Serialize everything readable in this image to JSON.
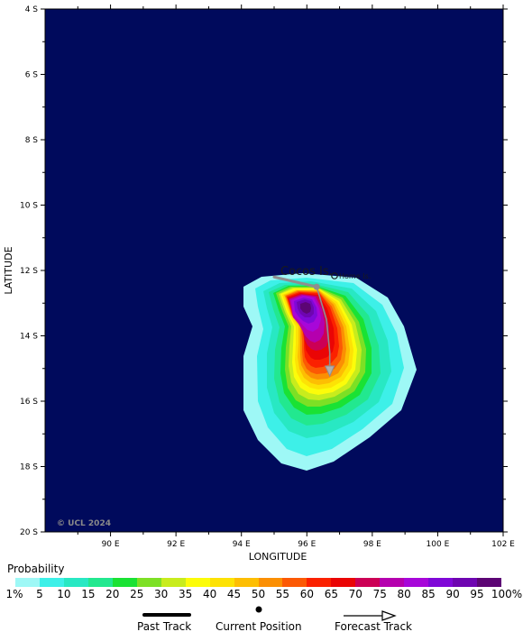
{
  "map": {
    "axis": {
      "ylabel": "LATITUDE",
      "xlabel": "LONGITUDE",
      "lat_ticks": [
        "4 S",
        "6 S",
        "8 S",
        "10 S",
        "12 S",
        "14 S",
        "16 S",
        "18 S",
        "20 S"
      ],
      "lon_ticks": [
        "90 E",
        "92 E",
        "94 E",
        "96 E",
        "98 E",
        "100 E",
        "102 E"
      ],
      "lat_range": [
        -4,
        -20
      ],
      "lon_range": [
        88,
        102
      ]
    },
    "places": {
      "cocos": "Cocos Is.",
      "home": "Home Is."
    },
    "copyright": "© UCL 2024",
    "colors": {
      "ocean": "#000a5c",
      "track": "#8f8f8f"
    },
    "track": {
      "past": [
        [
          95.0,
          -12.2
        ],
        [
          96.3,
          -12.5
        ]
      ],
      "current": [
        96.3,
        -12.5
      ],
      "forecast": [
        [
          96.3,
          -12.5
        ],
        [
          96.6,
          -13.5
        ],
        [
          96.7,
          -14.5
        ],
        [
          96.7,
          -15.2
        ]
      ]
    }
  },
  "legend": {
    "title": "Probability",
    "bins": [
      "1%",
      "5",
      "10",
      "15",
      "20",
      "25",
      "30",
      "35",
      "40",
      "45",
      "50",
      "55",
      "60",
      "65",
      "70",
      "75",
      "80",
      "85",
      "90",
      "95",
      "100%"
    ],
    "colors": [
      "#9ef8f6",
      "#3df0e8",
      "#28e8c3",
      "#22e88f",
      "#1ae234",
      "#7de025",
      "#c8ec1d",
      "#fcfc0a",
      "#fde205",
      "#fdbe03",
      "#fb8f03",
      "#fc5904",
      "#fb2100",
      "#ea0505",
      "#cc0055",
      "#b500ae",
      "#a707d9",
      "#7f08d7",
      "#6e05b1",
      "#5c0574"
    ],
    "past_track": "Past Track",
    "current_position": "Current Position",
    "forecast_track": "Forecast Track"
  }
}
